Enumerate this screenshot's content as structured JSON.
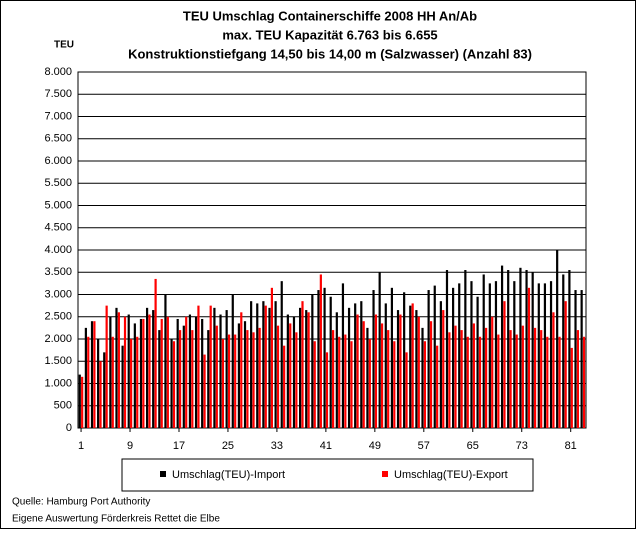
{
  "chart_data": {
    "type": "bar",
    "title": "TEU Umschlag Containerschiffe 2008 HH An/Ab",
    "subtitle": "max. TEU Kapazität 6.763 bis 6.655",
    "subtitle2": "Konstruktionstiefgang 14,50 bis 14,00 m (Salzwasser)  (Anzahl 83)",
    "y_label": "TEU",
    "categories": [
      "1",
      null,
      null,
      null,
      null,
      null,
      null,
      null,
      "9",
      null,
      null,
      null,
      null,
      null,
      null,
      null,
      "17",
      null,
      null,
      null,
      null,
      null,
      null,
      null,
      "25",
      null,
      null,
      null,
      null,
      null,
      null,
      null,
      "33",
      null,
      null,
      null,
      null,
      null,
      null,
      null,
      "41",
      null,
      null,
      null,
      null,
      null,
      null,
      null,
      "49",
      null,
      null,
      null,
      null,
      null,
      null,
      null,
      "57",
      null,
      null,
      null,
      null,
      null,
      null,
      null,
      "65",
      null,
      null,
      null,
      null,
      null,
      null,
      null,
      "73",
      null,
      null,
      null,
      null,
      null,
      null,
      null,
      "81",
      null,
      null
    ],
    "series": [
      {
        "name": "Umschlag(TEU)-Import",
        "color": "#000000",
        "values": [
          1200,
          2250,
          2400,
          2000,
          1700,
          2500,
          2700,
          1850,
          2550,
          2350,
          2450,
          2700,
          2650,
          2200,
          3000,
          2000,
          2450,
          2300,
          2550,
          2500,
          2450,
          2200,
          2700,
          2550,
          2650,
          3000,
          2350,
          2400,
          2850,
          2800,
          2850,
          2700,
          2850,
          3300,
          2550,
          2500,
          2700,
          2650,
          3000,
          3100,
          3150,
          2950,
          2600,
          3250,
          2700,
          2800,
          2850,
          2250,
          3100,
          3500,
          2800,
          3150,
          2650,
          3050,
          2750,
          2650,
          2250,
          3100,
          3200,
          2850,
          3550,
          3150,
          3250,
          3550,
          3300,
          2950,
          3450,
          3250,
          3300,
          3650,
          3550,
          3300,
          3600,
          3550,
          3500,
          3250,
          3250,
          3300,
          4000,
          3450,
          3550,
          3100,
          3100
        ]
      },
      {
        "name": "Umschlag(TEU)-Export",
        "color": "#ff0000",
        "values": [
          1150,
          2050,
          2400,
          1500,
          2750,
          2050,
          2600,
          2500,
          2000,
          2050,
          2450,
          2550,
          3350,
          2450,
          2500,
          1950,
          2200,
          2500,
          2200,
          2750,
          1650,
          2750,
          2300,
          2000,
          2100,
          2100,
          2600,
          2200,
          2150,
          2250,
          2750,
          3150,
          2300,
          1850,
          2350,
          2150,
          2850,
          2600,
          1950,
          3450,
          1700,
          2200,
          2050,
          2100,
          1950,
          2550,
          2400,
          2000,
          2550,
          2350,
          2200,
          1950,
          2550,
          1700,
          2800,
          2500,
          1950,
          2400,
          1850,
          2650,
          2150,
          2300,
          2200,
          2050,
          2350,
          2050,
          2250,
          2500,
          2100,
          2850,
          2200,
          2100,
          2300,
          3150,
          2250,
          2200,
          2050,
          2600,
          2050,
          2850,
          1800,
          2200,
          2050
        ]
      }
    ],
    "ylim": [
      0,
      8000
    ],
    "yticks": [
      0,
      {
        "value": 500,
        "label": "500"
      },
      {
        "value": 1000,
        "label": "1.000"
      },
      {
        "value": 1500,
        "label": "1.500"
      },
      {
        "value": 2000,
        "label": "2.000"
      },
      {
        "value": 2500,
        "label": "2.500"
      },
      {
        "value": 3000,
        "label": "3.000"
      },
      {
        "value": 3500,
        "label": "3.500"
      },
      {
        "value": 4000,
        "label": "4.000"
      },
      {
        "value": 4500,
        "label": "4.500"
      },
      {
        "value": 5000,
        "label": "5.000"
      },
      {
        "value": 5500,
        "label": "5.500"
      },
      {
        "value": 6000,
        "label": "6.000"
      },
      {
        "value": 6500,
        "label": "6.500"
      },
      {
        "value": 7000,
        "label": "7.000"
      },
      {
        "value": 7500,
        "label": "7.500"
      },
      {
        "value": 8000,
        "label": "8.000"
      }
    ],
    "grid": true,
    "source": "Quelle: Hamburg Port Authority",
    "note": "Eigene Auswertung Förderkreis Rettet die Elbe"
  }
}
